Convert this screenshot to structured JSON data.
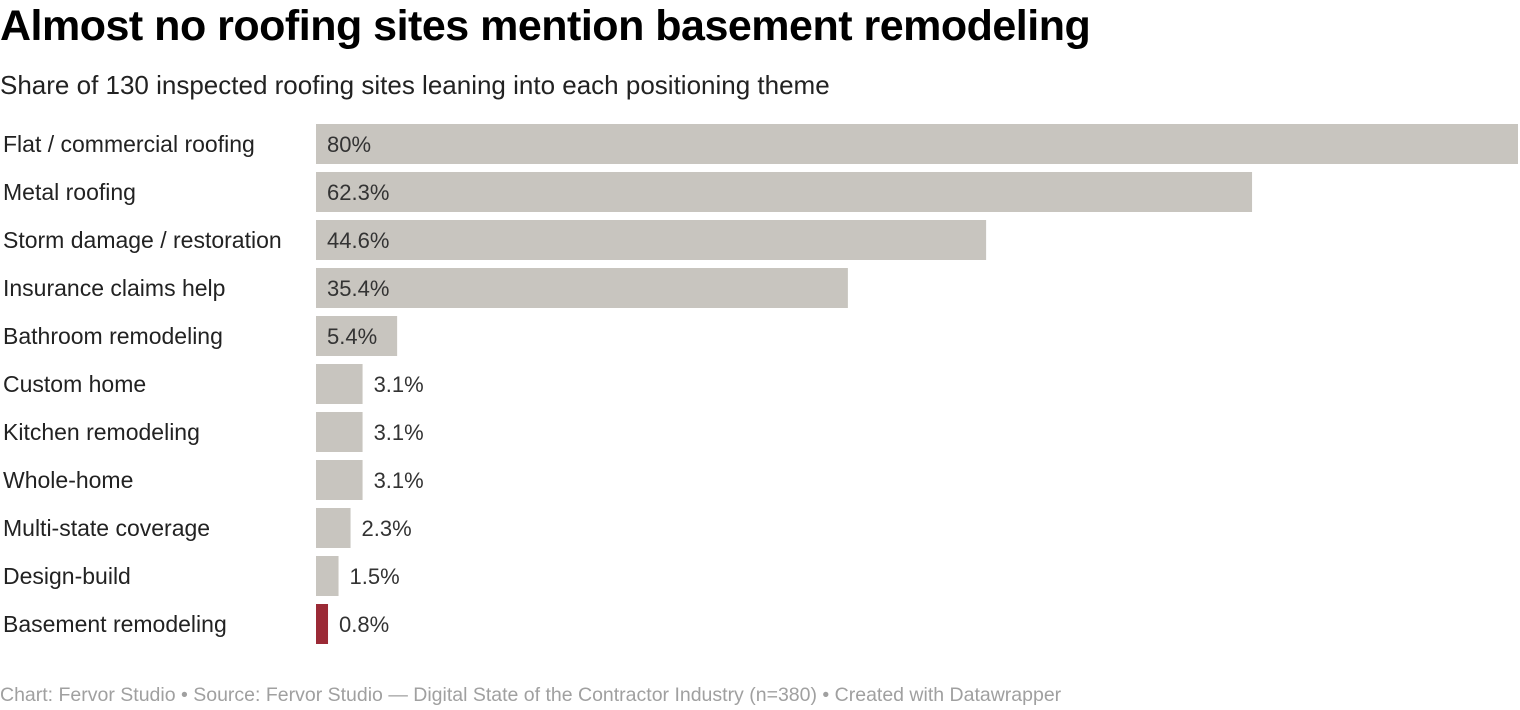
{
  "title": "Almost no roofing sites mention basement remodeling",
  "subtitle": "Share of 130 inspected roofing sites leaning into each positioning theme",
  "footer": "Chart: Fervor Studio • Source: Fervor Studio — Digital State of the Contractor Industry (n=380) • Created with Datawrapper",
  "colors": {
    "bar": "#c8c5bf",
    "highlight": "#9b2a36",
    "label": "#222222",
    "value": "#333333"
  },
  "chart_data": {
    "type": "bar",
    "orientation": "horizontal",
    "categories": [
      "Flat / commercial roofing",
      "Metal roofing",
      "Storm damage / restoration",
      "Insurance claims help",
      "Bathroom remodeling",
      "Custom home",
      "Kitchen remodeling",
      "Whole-home",
      "Multi-state coverage",
      "Design-build",
      "Basement remodeling"
    ],
    "values": [
      80,
      62.3,
      44.6,
      35.4,
      5.4,
      3.1,
      3.1,
      3.1,
      2.3,
      1.5,
      0.8
    ],
    "value_labels": [
      "80%",
      "62.3%",
      "44.6%",
      "35.4%",
      "5.4%",
      "3.1%",
      "3.1%",
      "3.1%",
      "2.3%",
      "1.5%",
      "0.8%"
    ],
    "highlighted_category": "Basement remodeling",
    "xlim": [
      0,
      80
    ],
    "grid": false,
    "legend": "none"
  }
}
